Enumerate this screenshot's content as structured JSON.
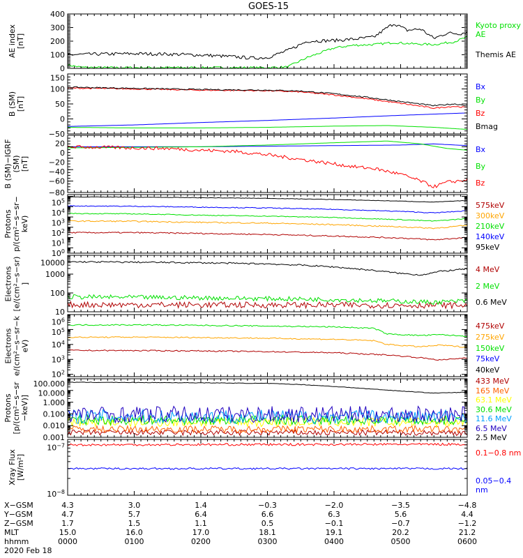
{
  "chart_data": [
    {
      "type": "line",
      "title": "GOES-15",
      "ylabel": [
        "AE index",
        "[nT]"
      ],
      "log": false,
      "ylim": [
        0,
        400
      ],
      "ticks": [
        {
          "v": 0,
          "l": "0"
        },
        {
          "v": 100,
          "l": "100"
        },
        {
          "v": 200,
          "l": "200"
        },
        {
          "v": 300,
          "l": "300"
        },
        {
          "v": 400,
          "l": "400"
        }
      ],
      "series": [
        {
          "name": "Kyoto proxy AE",
          "color": "#00e000",
          "noise": 0.02,
          "t": [
            0,
            0.2,
            0.5,
            1,
            2,
            3,
            3.3,
            3.6,
            4,
            4.3,
            4.6,
            4.9,
            5.2,
            5.5,
            5.8,
            6
          ],
          "v": [
            25,
            8,
            5,
            5,
            5,
            5,
            10,
            80,
            150,
            170,
            175,
            190,
            180,
            175,
            195,
            230
          ]
        },
        {
          "name": "Themis AE",
          "color": "#000000",
          "noise": 0.03,
          "t": [
            0,
            0.5,
            1,
            1.5,
            2,
            2.5,
            2.8,
            3,
            3.3,
            3.6,
            4,
            4.3,
            4.6,
            4.8,
            4.9,
            5.1,
            5.3,
            5.5,
            5.7,
            5.9,
            6
          ],
          "v": [
            100,
            105,
            108,
            105,
            98,
            85,
            75,
            80,
            130,
            200,
            205,
            215,
            230,
            300,
            330,
            280,
            290,
            220,
            260,
            255,
            270
          ]
        }
      ]
    },
    {
      "type": "line",
      "ylabel": [
        "B (SM)",
        "[nT]"
      ],
      "log": false,
      "ylim": [
        -50,
        150
      ],
      "ticks": [
        {
          "v": -50,
          "l": "−50"
        },
        {
          "v": 0,
          "l": "0"
        },
        {
          "v": 50,
          "l": "50"
        },
        {
          "v": 100,
          "l": "100"
        },
        {
          "v": 150,
          "l": "150"
        }
      ],
      "series": [
        {
          "name": "Bx",
          "color": "#0000ff",
          "noise": 0,
          "t": [
            0,
            1,
            2,
            3,
            4,
            5,
            6
          ],
          "v": [
            -25,
            -20,
            -12,
            -5,
            3,
            12,
            20
          ]
        },
        {
          "name": "By",
          "color": "#00e000",
          "noise": 0,
          "t": [
            0,
            1,
            2,
            3,
            4,
            4.8,
            5.5,
            6
          ],
          "v": [
            -28,
            -30,
            -30,
            -28,
            -24,
            -22,
            -28,
            -35
          ]
        },
        {
          "name": "Bz",
          "color": "#ff0000",
          "noise": 0.01,
          "t": [
            0,
            1,
            2,
            3,
            3.5,
            4,
            4.5,
            5,
            5.5,
            5.8,
            6
          ],
          "v": [
            103,
            100,
            96,
            94,
            90,
            80,
            67,
            52,
            36,
            42,
            38
          ]
        },
        {
          "name": "Bmag",
          "color": "#000000",
          "noise": 0.01,
          "t": [
            0,
            1,
            2,
            3,
            3.5,
            4,
            4.5,
            5,
            5.5,
            5.8,
            6
          ],
          "v": [
            106,
            102,
            98,
            96,
            93,
            84,
            72,
            58,
            44,
            50,
            45
          ]
        }
      ]
    },
    {
      "type": "line",
      "ylabel": [
        "B (SM)−IGRF (SM)",
        "[nT]"
      ],
      "log": false,
      "ylim": [
        -80,
        20
      ],
      "ticks": [
        {
          "v": -80,
          "l": "−80"
        },
        {
          "v": -60,
          "l": "−60"
        },
        {
          "v": -40,
          "l": "−40"
        },
        {
          "v": -20,
          "l": "−20"
        },
        {
          "v": 0,
          "l": "0"
        },
        {
          "v": 20,
          "l": "20"
        }
      ],
      "series": [
        {
          "name": "Bx",
          "color": "#0000ff",
          "noise": 0,
          "t": [
            0,
            1,
            2,
            3,
            4,
            5,
            5.5,
            6
          ],
          "v": [
            0,
            0,
            0,
            1,
            2,
            3,
            5,
            2
          ]
        },
        {
          "name": "By",
          "color": "#00e000",
          "noise": 0,
          "t": [
            0,
            1,
            2,
            3,
            4,
            4.8,
            5.3,
            5.7,
            6
          ],
          "v": [
            -2,
            -1,
            0,
            3,
            7,
            10,
            5,
            -3,
            -6
          ]
        },
        {
          "name": "Bz",
          "color": "#ff0000",
          "noise": 0.03,
          "t": [
            0,
            1,
            1.5,
            2,
            2.5,
            3,
            3.5,
            4,
            4.3,
            4.6,
            5,
            5.3,
            5.5,
            5.7,
            6
          ],
          "v": [
            0,
            -2,
            -3,
            -6,
            -8,
            -14,
            -22,
            -30,
            -35,
            -38,
            -48,
            -60,
            -70,
            -62,
            -58
          ]
        }
      ]
    },
    {
      "type": "line",
      "ylabel": [
        "Protons",
        "p/(cm²−s−sr−keV)"
      ],
      "log": true,
      "ylim": [
        0.3,
        150000
      ],
      "ticks": [
        {
          "v": 1,
          "l": "10",
          "e": "0"
        },
        {
          "v": 10,
          "l": "10",
          "e": "1"
        },
        {
          "v": 100,
          "l": "10",
          "e": "2"
        },
        {
          "v": 1000,
          "l": "10",
          "e": "3"
        },
        {
          "v": 10000,
          "l": "10",
          "e": "4"
        },
        {
          "v": 100000,
          "l": "10",
          "e": "5"
        }
      ],
      "series": [
        {
          "name": "575keV",
          "color": "#b00000",
          "noise": 0.03,
          "t": [
            0,
            1,
            2,
            3,
            4,
            5,
            5.5,
            6
          ],
          "v": [
            30,
            30,
            25,
            20,
            14,
            9,
            6,
            10
          ]
        },
        {
          "name": "300keV",
          "color": "#ffa500",
          "noise": 0.03,
          "t": [
            0,
            1,
            2,
            3,
            4,
            5,
            5.5,
            6
          ],
          "v": [
            400,
            380,
            300,
            250,
            180,
            110,
            80,
            150
          ]
        },
        {
          "name": "210keV",
          "color": "#00e000",
          "noise": 0.02,
          "t": [
            0,
            1,
            2,
            3,
            4,
            5,
            5.5,
            6
          ],
          "v": [
            2200,
            2000,
            1500,
            1200,
            900,
            550,
            400,
            700
          ]
        },
        {
          "name": "140keV",
          "color": "#0000ff",
          "noise": 0.02,
          "t": [
            0,
            1,
            2,
            3,
            4,
            5,
            5.5,
            6
          ],
          "v": [
            12000,
            11000,
            9000,
            7500,
            5500,
            3500,
            2500,
            4000
          ]
        },
        {
          "name": "95keV",
          "color": "#000000",
          "noise": 0.01,
          "t": [
            0,
            1,
            2,
            3,
            4,
            5,
            5.5,
            6
          ],
          "v": [
            90000,
            85000,
            75000,
            65000,
            50000,
            35000,
            28000,
            40000
          ]
        }
      ]
    },
    {
      "type": "line",
      "ylabel": [
        "Electrons",
        "[e/(cm²−s−sr)]"
      ],
      "log": true,
      "ylim": [
        10,
        10000
      ],
      "ticks": [
        {
          "v": 10,
          "l": "10"
        },
        {
          "v": 100,
          "l": "100"
        },
        {
          "v": 1000,
          "l": "1000"
        },
        {
          "v": 10000,
          "l": "10000"
        }
      ],
      "series": [
        {
          "name": "4 MeV",
          "color": "#b00000",
          "noise": 0.08,
          "t": [
            0,
            3,
            6
          ],
          "v": [
            24,
            23,
            22
          ]
        },
        {
          "name": "2 MeV",
          "color": "#00e000",
          "noise": 0.06,
          "t": [
            0,
            2,
            4,
            5.5,
            6
          ],
          "v": [
            62,
            55,
            45,
            32,
            38
          ]
        },
        {
          "name": "0.6 MeV",
          "color": "#000000",
          "noise": 0.02,
          "t": [
            0,
            1,
            2,
            3,
            3.5,
            4,
            4.5,
            5,
            5.3,
            5.6,
            6
          ],
          "v": [
            4500,
            4300,
            4000,
            3500,
            3000,
            2400,
            1700,
            1100,
            900,
            1400,
            1900
          ]
        }
      ]
    },
    {
      "type": "line",
      "ylabel": [
        "Electrons",
        "e/(cm²−s−sr−keV)"
      ],
      "log": true,
      "ylim": [
        70,
        1000000
      ],
      "ticks": [
        {
          "v": 100,
          "l": "10",
          "e": "2"
        },
        {
          "v": 1000,
          "l": "10",
          "e": "3"
        },
        {
          "v": 10000,
          "l": "10",
          "e": "4"
        },
        {
          "v": 100000,
          "l": "10",
          "e": "5"
        },
        {
          "v": 1000000,
          "l": "10",
          "e": "6"
        }
      ],
      "series": [
        {
          "name": "475keV",
          "color": "#b00000",
          "noise": 0.02,
          "t": [
            0,
            1,
            2,
            3,
            4,
            4.8,
            5.3,
            5.6,
            6
          ],
          "v": [
            4000,
            3900,
            3700,
            3300,
            2800,
            2000,
            1300,
            900,
            1300
          ]
        },
        {
          "name": "275keV",
          "color": "#ffa500",
          "noise": 0.02,
          "t": [
            0,
            1,
            2,
            3,
            4,
            4.6,
            4.8,
            5.3,
            5.6,
            6
          ],
          "v": [
            30000,
            31000,
            29000,
            26000,
            22000,
            18000,
            10000,
            7000,
            9000,
            6500
          ]
        },
        {
          "name": "150keV",
          "color": "#00e000",
          "noise": 0.02,
          "t": [
            0,
            1,
            2,
            3,
            4,
            4.6,
            4.8,
            5.3,
            5.6,
            6
          ],
          "v": [
            200000,
            205000,
            190000,
            170000,
            150000,
            120000,
            50000,
            40000,
            45000,
            35000
          ]
        },
        {
          "name": "75keV",
          "color": "#0000ff",
          "noise": 0,
          "t": [],
          "v": []
        },
        {
          "name": "40keV",
          "color": "#000000",
          "noise": 0,
          "t": [],
          "v": []
        }
      ]
    },
    {
      "type": "line",
      "ylabel": [
        "Protons",
        "[p/(cm²−s−sr−keV)]"
      ],
      "log": true,
      "ylim": [
        0.001,
        100
      ],
      "ticks": [
        {
          "v": 0.001,
          "l": "0.001"
        },
        {
          "v": 0.01,
          "l": "0.010"
        },
        {
          "v": 0.1,
          "l": "0.100"
        },
        {
          "v": 1,
          "l": "1.000"
        },
        {
          "v": 10,
          "l": "10.000"
        },
        {
          "v": 100,
          "l": "100.000"
        }
      ],
      "series": [
        {
          "name": "433 MeV",
          "color": "#b00000",
          "noise": 0.12,
          "t": [
            0,
            6
          ],
          "v": [
            0.0025,
            0.0025
          ]
        },
        {
          "name": "165 MeV",
          "color": "#ff6000",
          "noise": 0.15,
          "t": [
            0,
            6
          ],
          "v": [
            0.005,
            0.005
          ]
        },
        {
          "name": "63.1 MeV",
          "color": "#ffff00",
          "noise": 0.2,
          "t": [
            0,
            6
          ],
          "v": [
            0.02,
            0.02
          ]
        },
        {
          "name": "30.6 MeV",
          "color": "#00e000",
          "noise": 0.2,
          "t": [
            0,
            6
          ],
          "v": [
            0.03,
            0.03
          ]
        },
        {
          "name": "11.6 MeV",
          "color": "#00a0ff",
          "noise": 0.3,
          "t": [
            0,
            6
          ],
          "v": [
            0.06,
            0.06
          ]
        },
        {
          "name": "6.5 MeV",
          "color": "#2000c0",
          "noise": 0.35,
          "t": [
            0,
            6
          ],
          "v": [
            0.09,
            0.09
          ]
        },
        {
          "name": "2.5 MeV",
          "color": "#000000",
          "noise": 0.01,
          "t": [
            0,
            1,
            2,
            3,
            3.5,
            4,
            4.5,
            5,
            5.5,
            6
          ],
          "v": [
            50,
            48,
            45,
            40,
            32,
            22,
            14,
            9,
            6,
            7
          ]
        }
      ]
    },
    {
      "type": "line",
      "ylabel": [
        "Xray Flux",
        "[W/m²]"
      ],
      "log": true,
      "ylim": [
        1e-08,
        1e-07
      ],
      "ticks": [
        {
          "v": 1e-08,
          "l": "10",
          "e": "−8"
        },
        {
          "v": 1e-07,
          "l": "10",
          "e": "−7"
        }
      ],
      "series": [
        {
          "name": "0.1−0.8 nm",
          "color": "#ff0000",
          "noise": 0.01,
          "t": [
            0,
            6
          ],
          "v": [
            8e-08,
            8.2e-08
          ]
        },
        {
          "name": "0.05−0.4 nm",
          "color": "#0000ff",
          "noise": 0.008,
          "t": [
            0,
            6
          ],
          "v": [
            3e-08,
            3e-08
          ]
        }
      ]
    }
  ],
  "xaxis": {
    "rows": [
      {
        "label": "X−GSM",
        "values": [
          "4.3",
          "3.0",
          "1.4",
          "−0.3",
          "−2.0",
          "−3.5",
          "−4.8"
        ]
      },
      {
        "label": "Y−GSM",
        "values": [
          "4.7",
          "5.7",
          "6.4",
          "6.6",
          "6.3",
          "5.6",
          "4.4"
        ]
      },
      {
        "label": "Z−GSM",
        "values": [
          "1.7",
          "1.5",
          "1.1",
          "0.5",
          "−0.1",
          "−0.7",
          "−1.2"
        ]
      },
      {
        "label": "MLT",
        "values": [
          "15.0",
          "16.0",
          "17.0",
          "18.1",
          "19.1",
          "20.2",
          "21.2"
        ]
      },
      {
        "label": "hhmm",
        "values": [
          "0000",
          "0100",
          "0200",
          "0300",
          "0400",
          "0500",
          "0600"
        ]
      }
    ],
    "date": "2020 Feb 18",
    "xlim": [
      0,
      6
    ]
  }
}
